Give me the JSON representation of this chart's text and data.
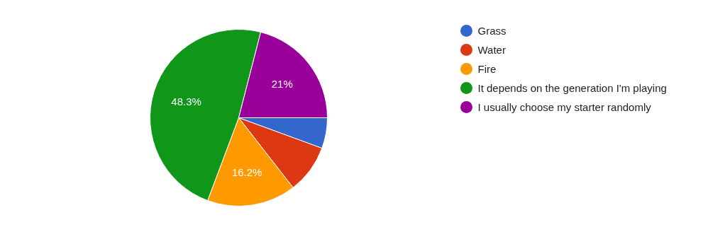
{
  "chart_data": {
    "type": "pie",
    "categories": [
      "Grass",
      "Water",
      "Fire",
      "It depends on the generation I'm playing",
      "I usually choose my starter randomly"
    ],
    "values": [
      5.6,
      8.9,
      16.2,
      48.3,
      21
    ],
    "colors": [
      "#3366cc",
      "#dc3912",
      "#ff9900",
      "#109618",
      "#990099"
    ],
    "value_labels": [
      null,
      null,
      "16.2%",
      "48.3%",
      "21%"
    ],
    "legend": "right"
  }
}
